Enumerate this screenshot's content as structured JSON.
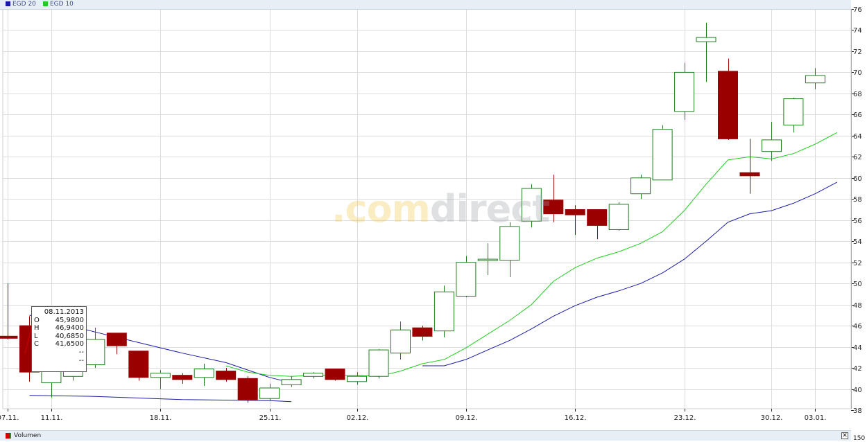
{
  "legend": [
    {
      "label": "EGD 20",
      "color": "#1a1aa8"
    },
    {
      "label": "EGD 10",
      "color": "#22cc22"
    }
  ],
  "watermark": {
    "part1": ".com",
    "part2": "direct"
  },
  "volume_panel": {
    "label": "Volumen",
    "close_symbol": "✕",
    "partial_axis_label": "150"
  },
  "tooltip": {
    "date": "08.11.2013",
    "rows": [
      {
        "key": "O",
        "value": "45,9800"
      },
      {
        "key": "H",
        "value": "46,9400"
      },
      {
        "key": "L",
        "value": "40,6850"
      },
      {
        "key": "C",
        "value": "41,6500"
      }
    ],
    "extra": [
      "--",
      "--"
    ]
  },
  "colors": {
    "up": "#1e7b1e",
    "down": "#9b0000",
    "grid": "#dcdcdc",
    "axis": "#222222"
  },
  "chart_data": {
    "type": "candlestick",
    "y_axis": {
      "min": 38,
      "max": 76,
      "ticks": [
        38,
        40,
        42,
        44,
        46,
        48,
        50,
        52,
        54,
        56,
        58,
        60,
        62,
        64,
        66,
        68,
        70,
        72,
        74,
        76
      ]
    },
    "x_ticks": [
      {
        "label": "07.11.",
        "index": 0
      },
      {
        "label": "11.11.",
        "index": 2
      },
      {
        "label": "18.11.",
        "index": 7
      },
      {
        "label": "25.11.",
        "index": 12
      },
      {
        "label": "02.12.",
        "index": 16
      },
      {
        "label": "09.12.",
        "index": 21
      },
      {
        "label": "16.12.",
        "index": 26
      },
      {
        "label": "23.12.",
        "index": 31
      },
      {
        "label": "30.12.",
        "index": 35
      },
      {
        "label": "03.01.",
        "index": 37
      }
    ],
    "candles": [
      {
        "o": 45.0,
        "h": 50.0,
        "l": 44.7,
        "c": 44.8
      },
      {
        "o": 46.0,
        "h": 46.9,
        "l": 40.7,
        "c": 41.6
      },
      {
        "o": 40.6,
        "h": 43.0,
        "l": 39.2,
        "c": 42.2
      },
      {
        "o": 41.2,
        "h": 43.0,
        "l": 40.8,
        "c": 42.7
      },
      {
        "o": 42.3,
        "h": 45.8,
        "l": 42.0,
        "c": 44.7
      },
      {
        "o": 45.3,
        "h": 45.3,
        "l": 43.3,
        "c": 44.1
      },
      {
        "o": 43.6,
        "h": 43.6,
        "l": 40.8,
        "c": 41.1
      },
      {
        "o": 41.1,
        "h": 41.8,
        "l": 40.0,
        "c": 41.5
      },
      {
        "o": 41.3,
        "h": 41.5,
        "l": 40.5,
        "c": 40.9
      },
      {
        "o": 41.1,
        "h": 42.4,
        "l": 40.3,
        "c": 41.9
      },
      {
        "o": 41.7,
        "h": 42.0,
        "l": 40.7,
        "c": 40.9
      },
      {
        "o": 41.0,
        "h": 41.2,
        "l": 38.7,
        "c": 39.0
      },
      {
        "o": 39.1,
        "h": 40.5,
        "l": 38.9,
        "c": 40.1
      },
      {
        "o": 40.4,
        "h": 41.2,
        "l": 40.2,
        "c": 40.9
      },
      {
        "o": 41.2,
        "h": 41.6,
        "l": 41.0,
        "c": 41.5
      },
      {
        "o": 41.9,
        "h": 41.9,
        "l": 40.8,
        "c": 40.9
      },
      {
        "o": 40.7,
        "h": 41.6,
        "l": 40.4,
        "c": 41.2
      },
      {
        "o": 41.2,
        "h": 43.8,
        "l": 41.0,
        "c": 43.7
      },
      {
        "o": 43.4,
        "h": 46.4,
        "l": 42.8,
        "c": 45.6
      },
      {
        "o": 45.8,
        "h": 46.0,
        "l": 44.6,
        "c": 45.0
      },
      {
        "o": 45.5,
        "h": 49.8,
        "l": 44.9,
        "c": 49.2
      },
      {
        "o": 48.8,
        "h": 52.6,
        "l": 48.7,
        "c": 52.0
      },
      {
        "o": 52.3,
        "h": 53.8,
        "l": 50.8,
        "c": 52.3
      },
      {
        "o": 52.2,
        "h": 55.8,
        "l": 50.6,
        "c": 55.4
      },
      {
        "o": 55.9,
        "h": 59.4,
        "l": 55.3,
        "c": 59.0
      },
      {
        "o": 57.9,
        "h": 60.3,
        "l": 55.8,
        "c": 56.6
      },
      {
        "o": 57.0,
        "h": 57.4,
        "l": 54.6,
        "c": 56.5
      },
      {
        "o": 57.0,
        "h": 57.0,
        "l": 54.2,
        "c": 55.5
      },
      {
        "o": 55.1,
        "h": 57.7,
        "l": 55.0,
        "c": 57.5
      },
      {
        "o": 58.5,
        "h": 60.3,
        "l": 58.0,
        "c": 60.0
      },
      {
        "o": 59.8,
        "h": 65.0,
        "l": 59.8,
        "c": 64.6
      },
      {
        "o": 66.3,
        "h": 70.9,
        "l": 65.5,
        "c": 70.0
      },
      {
        "o": 72.9,
        "h": 74.7,
        "l": 69.1,
        "c": 73.3
      },
      {
        "o": 70.1,
        "h": 71.3,
        "l": 63.6,
        "c": 63.7
      },
      {
        "o": 60.5,
        "h": 63.7,
        "l": 58.5,
        "c": 60.2
      },
      {
        "o": 62.5,
        "h": 65.3,
        "l": 61.6,
        "c": 63.6
      },
      {
        "o": 65.0,
        "h": 67.6,
        "l": 64.3,
        "c": 67.5
      },
      {
        "o": 69.0,
        "h": 70.4,
        "l": 68.4,
        "c": 69.7
      }
    ],
    "series": [
      {
        "name": "EGD 20",
        "color": "#1a1aa8",
        "segments": [
          [
            [
              1,
              47.0
            ],
            [
              4,
              45.4
            ],
            [
              8,
              43.4
            ],
            [
              10,
              42.5
            ],
            [
              12,
              41.1
            ],
            [
              13,
              40.6
            ]
          ],
          [
            [
              1,
              39.4
            ],
            [
              4,
              39.3
            ],
            [
              8,
              39.0
            ],
            [
              12,
              38.9
            ],
            [
              13,
              38.8
            ]
          ],
          [
            [
              19,
              42.2
            ],
            [
              20,
              42.2
            ],
            [
              21,
              42.8
            ],
            [
              22,
              43.7
            ],
            [
              23,
              44.6
            ],
            [
              24,
              45.7
            ],
            [
              25,
              46.9
            ],
            [
              26,
              47.9
            ],
            [
              27,
              48.7
            ],
            [
              28,
              49.3
            ],
            [
              29,
              50.0
            ],
            [
              30,
              51.0
            ],
            [
              31,
              52.3
            ],
            [
              32,
              54.0
            ],
            [
              33,
              55.8
            ],
            [
              34,
              56.6
            ],
            [
              35,
              56.9
            ],
            [
              36,
              57.6
            ],
            [
              37,
              58.5
            ],
            [
              38,
              59.6
            ]
          ]
        ]
      },
      {
        "name": "EGD 10",
        "color": "#22cc22",
        "segments": [
          [
            [
              10,
              42.2
            ],
            [
              11,
              41.6
            ],
            [
              12,
              41.3
            ],
            [
              13,
              41.2
            ],
            [
              14,
              41.3
            ],
            [
              16,
              41.3
            ],
            [
              17,
              41.2
            ],
            [
              18,
              41.7
            ],
            [
              19,
              42.4
            ],
            [
              20,
              42.8
            ],
            [
              21,
              43.9
            ],
            [
              22,
              45.2
            ],
            [
              23,
              46.5
            ],
            [
              24,
              48.0
            ],
            [
              25,
              50.2
            ],
            [
              26,
              51.5
            ],
            [
              27,
              52.4
            ],
            [
              28,
              53.0
            ],
            [
              29,
              53.8
            ],
            [
              30,
              54.9
            ],
            [
              31,
              56.9
            ],
            [
              32,
              59.4
            ],
            [
              33,
              61.7
            ],
            [
              34,
              62.0
            ],
            [
              35,
              61.8
            ],
            [
              36,
              62.3
            ],
            [
              37,
              63.2
            ],
            [
              38,
              64.3
            ]
          ]
        ]
      }
    ]
  }
}
